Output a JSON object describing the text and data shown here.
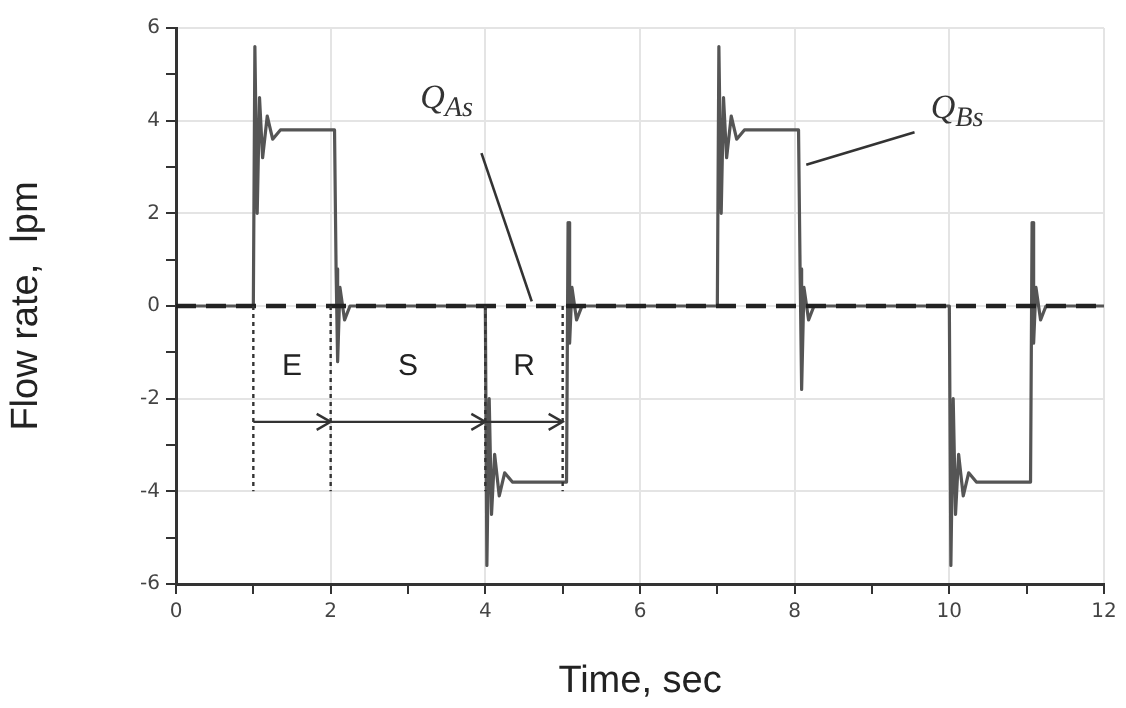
{
  "chart_data": {
    "type": "line",
    "xlabel": "Time, sec",
    "ylabel": "Flow rate,  lpm",
    "xlim": [
      0,
      12
    ],
    "ylim": [
      -6,
      6
    ],
    "xticks": [
      0,
      {
        "value": 1,
        "label": null
      },
      2,
      {
        "value": 3,
        "label": null
      },
      4,
      {
        "value": 5,
        "label": null
      },
      6,
      {
        "value": 7,
        "label": null
      },
      8,
      {
        "value": 9,
        "label": null
      },
      10,
      {
        "value": 11,
        "label": null
      },
      12
    ],
    "yticks": [
      -6,
      {
        "value": -5,
        "label": null
      },
      -4,
      {
        "value": -3,
        "label": null
      },
      -2,
      {
        "value": -1,
        "label": null
      },
      0,
      {
        "value": 1,
        "label": null
      },
      2,
      {
        "value": 3,
        "label": null
      },
      4,
      {
        "value": 5,
        "label": null
      },
      6
    ],
    "grid": true,
    "legend": false,
    "marker": "none",
    "series": [
      {
        "name": "Q$_{Bs}$",
        "color": "#555555",
        "line_style": "solid",
        "x": [
          0,
          1,
          1.02,
          1.05,
          1.08,
          1.12,
          1.18,
          1.25,
          1.35,
          2.05,
          2.07,
          2.09,
          2.12,
          2.18,
          2.25,
          4,
          4.02,
          4.05,
          4.08,
          4.12,
          4.18,
          4.25,
          4.35,
          5.05,
          5.07,
          5.09,
          5.12,
          5.18,
          5.25,
          7,
          7.02,
          7.05,
          7.08,
          7.12,
          7.18,
          7.25,
          7.35,
          8.05,
          8.07,
          8.09,
          8.12,
          8.18,
          8.25,
          10,
          10.02,
          10.05,
          10.08,
          10.12,
          10.18,
          10.25,
          10.35,
          11.05,
          11.07,
          11.09,
          11.12,
          11.18,
          11.25,
          12
        ],
        "values": [
          0,
          0,
          5.6,
          2.0,
          4.5,
          3.2,
          4.1,
          3.6,
          3.8,
          3.8,
          0.8,
          -1.2,
          0.4,
          -0.3,
          0,
          0,
          -5.6,
          -2.0,
          -4.5,
          -3.2,
          -4.1,
          -3.6,
          -3.8,
          -3.8,
          1.8,
          -0.8,
          0.4,
          -0.3,
          0,
          0,
          5.6,
          2.0,
          4.5,
          3.2,
          4.1,
          3.6,
          3.8,
          3.8,
          0.8,
          -1.8,
          0.4,
          -0.3,
          0,
          0,
          -5.6,
          -2.0,
          -4.5,
          -3.2,
          -4.1,
          -3.6,
          -3.8,
          -3.8,
          1.8,
          -0.8,
          0.4,
          -0.3,
          0,
          0
        ]
      },
      {
        "name": "Q$_{As}$",
        "color": "#222222",
        "line_style": "dashed",
        "x": [
          0,
          12
        ],
        "values": [
          0,
          0
        ]
      }
    ],
    "annotations": [
      "E",
      "S",
      "R"
    ]
  }
}
